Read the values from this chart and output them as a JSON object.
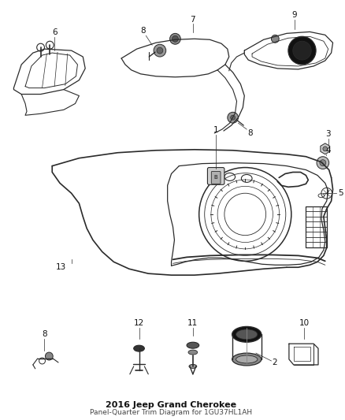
{
  "title": "2016 Jeep Grand Cherokee",
  "subtitle": "Panel-Quarter Trim Diagram for 1GU37HL1AH",
  "bg_color": "#ffffff",
  "line_color": "#2a2a2a",
  "label_color": "#111111",
  "fig_width": 4.38,
  "fig_height": 5.33,
  "dpi": 100
}
